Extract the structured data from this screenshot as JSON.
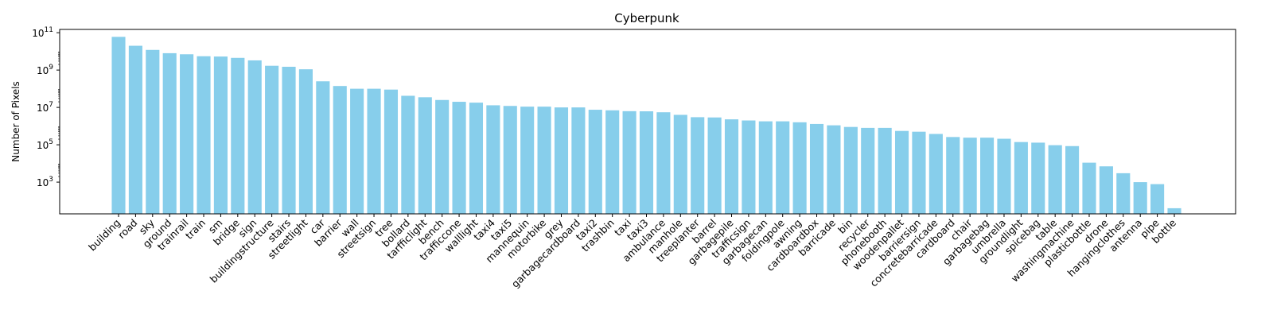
{
  "chart_data": {
    "type": "bar",
    "title": "Cyberpunk",
    "xlabel": "",
    "ylabel": "Number of Pixels",
    "yscale": "log",
    "ylim": [
      20,
      150000000000
    ],
    "yticks": [
      {
        "value": 1000,
        "base": "10",
        "exp": "3"
      },
      {
        "value": 100000,
        "base": "10",
        "exp": "5"
      },
      {
        "value": 10000000,
        "base": "10",
        "exp": "7"
      },
      {
        "value": 1000000000,
        "base": "10",
        "exp": "9"
      },
      {
        "value": 100000000000,
        "base": "10",
        "exp": "11"
      }
    ],
    "grid": false,
    "bar_color": "#87CEEB",
    "categories": [
      "building",
      "road",
      "sky",
      "ground",
      "trainrail",
      "train",
      "sm",
      "bridge",
      "sign",
      "buildingstructure",
      "stairs",
      "streetlight",
      "car",
      "barrier",
      "wall",
      "streetsign",
      "tree",
      "bollard",
      "tarfficlight",
      "bench",
      "trafficcone",
      "walllight",
      "taxi4",
      "taxi5",
      "mannequin",
      "motorbike",
      "grey",
      "garbagecardboard",
      "taxi2",
      "trashbin",
      "taxi",
      "taxi3",
      "ambulance",
      "manhole",
      "treeplanter",
      "barrel",
      "garbagepile",
      "trafficsign",
      "garbagecan",
      "foldingpole",
      "awning",
      "cardboardbox",
      "barricade",
      "bin",
      "recycler",
      "phonebooth",
      "woodenpallet",
      "barriersign",
      "concretebarricade",
      "cardboard",
      "chair",
      "garbagebag",
      "umbrella",
      "groundlight",
      "spicebag",
      "table",
      "washingmachine",
      "plasticbottle",
      "drone",
      "hangingclothes",
      "antenna",
      "pipe",
      "bottle"
    ],
    "values": [
      60000000000,
      20000000000,
      12000000000,
      8000000000,
      7000000000,
      5500000000,
      5300000000,
      4500000000,
      3300000000,
      1700000000,
      1500000000,
      1100000000,
      250000000,
      140000000,
      100000000,
      100000000,
      90000000,
      42000000,
      35000000,
      25000000,
      20000000,
      18000000,
      13000000,
      12000000,
      11000000,
      11000000,
      10000000,
      10000000,
      7500000,
      7000000,
      6300000,
      6200000,
      5500000,
      4000000,
      3000000,
      2900000,
      2300000,
      2000000,
      1800000,
      1800000,
      1600000,
      1300000,
      1100000,
      900000,
      800000,
      800000,
      550000,
      500000,
      380000,
      260000,
      240000,
      240000,
      210000,
      140000,
      130000,
      95000,
      85000,
      11000,
      7000,
      3000,
      1000,
      780,
      40
    ]
  }
}
